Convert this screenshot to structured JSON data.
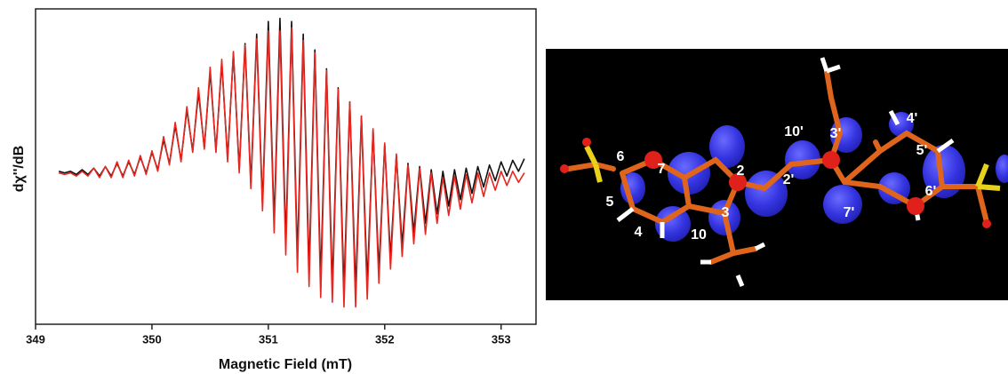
{
  "chart_data": {
    "type": "line",
    "x_label": "Magnetic Field (mT)",
    "y_label": "dχ''/dB",
    "x": [
      349.2,
      349.25,
      349.3,
      349.35,
      349.4,
      349.45,
      349.5,
      349.55,
      349.6,
      349.65,
      349.7,
      349.75,
      349.8,
      349.85,
      349.9,
      349.95,
      350.0,
      350.05,
      350.1,
      350.15,
      350.2,
      350.25,
      350.3,
      350.35,
      350.4,
      350.45,
      350.5,
      350.55,
      350.6,
      350.65,
      350.7,
      350.75,
      350.8,
      350.85,
      350.9,
      350.95,
      351.0,
      351.05,
      351.1,
      351.15,
      351.2,
      351.25,
      351.3,
      351.35,
      351.4,
      351.45,
      351.5,
      351.55,
      351.6,
      351.65,
      351.7,
      351.75,
      351.8,
      351.85,
      351.9,
      351.95,
      352.0,
      352.05,
      352.1,
      352.15,
      352.2,
      352.25,
      352.3,
      352.35,
      352.4,
      352.45,
      352.5,
      352.55,
      352.6,
      352.65,
      352.7,
      352.75,
      352.8,
      352.85,
      352.9,
      352.95,
      353.0,
      353.05,
      353.1,
      353.15,
      353.2
    ],
    "series": [
      {
        "color": "#111111",
        "values": [
          -0.03,
          -0.04,
          -0.03,
          -0.05,
          -0.02,
          -0.05,
          -0.01,
          -0.06,
          0.0,
          -0.06,
          0.02,
          -0.06,
          0.03,
          -0.05,
          0.06,
          -0.04,
          0.09,
          -0.02,
          0.17,
          0.02,
          0.26,
          0.04,
          0.36,
          0.1,
          0.47,
          0.12,
          0.6,
          0.1,
          0.66,
          0.05,
          0.72,
          -0.02,
          0.78,
          -0.11,
          0.84,
          -0.24,
          0.92,
          -0.36,
          0.94,
          -0.48,
          0.92,
          -0.58,
          0.84,
          -0.66,
          0.74,
          -0.72,
          0.62,
          -0.76,
          0.5,
          -0.78,
          0.41,
          -0.78,
          0.32,
          -0.74,
          0.23,
          -0.66,
          0.14,
          -0.58,
          0.07,
          -0.5,
          0.02,
          -0.42,
          0.0,
          -0.36,
          -0.02,
          -0.3,
          -0.03,
          -0.25,
          -0.02,
          -0.21,
          -0.01,
          -0.17,
          0.0,
          -0.13,
          0.01,
          -0.09,
          0.03,
          -0.06,
          0.04,
          -0.03,
          0.05
        ]
      },
      {
        "color": "#e8261f",
        "values": [
          -0.04,
          -0.05,
          -0.04,
          -0.06,
          -0.03,
          -0.06,
          -0.01,
          -0.07,
          0.0,
          -0.07,
          0.03,
          -0.07,
          0.04,
          -0.06,
          0.07,
          -0.05,
          0.1,
          -0.03,
          0.19,
          0.01,
          0.28,
          0.03,
          0.38,
          0.09,
          0.5,
          0.11,
          0.63,
          0.09,
          0.68,
          0.03,
          0.73,
          -0.04,
          0.77,
          -0.14,
          0.81,
          -0.28,
          0.86,
          -0.42,
          0.86,
          -0.56,
          0.88,
          -0.67,
          0.8,
          -0.76,
          0.72,
          -0.83,
          0.61,
          -0.86,
          0.49,
          -0.89,
          0.41,
          -0.89,
          0.32,
          -0.84,
          0.24,
          -0.74,
          0.15,
          -0.65,
          0.08,
          -0.57,
          0.01,
          -0.49,
          -0.01,
          -0.43,
          -0.04,
          -0.36,
          -0.07,
          -0.31,
          -0.06,
          -0.27,
          -0.05,
          -0.23,
          -0.04,
          -0.19,
          -0.04,
          -0.15,
          -0.03,
          -0.12,
          -0.03,
          -0.1,
          -0.04
        ]
      }
    ],
    "xlim": [
      349,
      353.3
    ],
    "xticks": [
      349,
      350,
      351,
      352,
      353
    ],
    "ylim": [
      -1,
      1
    ],
    "grid": false
  },
  "structure_image": {
    "atom_labels": [
      "6",
      "7",
      "5",
      "4",
      "10",
      "3",
      "2",
      "2'",
      "10'",
      "3'",
      "4'",
      "5'",
      "6'",
      "7'"
    ]
  }
}
